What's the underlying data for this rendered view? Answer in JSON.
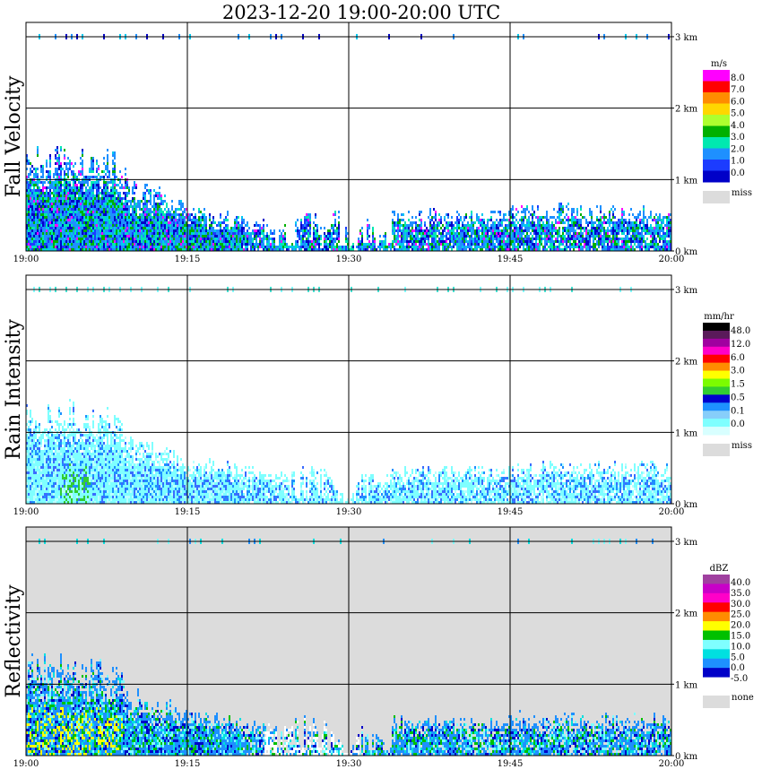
{
  "title": "2023-12-20   19:00-20:00 UTC",
  "chart_data": [
    {
      "type": "heatmap",
      "ylabel": "Fall Velocity",
      "x_ticks": [
        "19:00",
        "19:15",
        "19:30",
        "19:45",
        "20:00"
      ],
      "y_ticks": [
        "0 km",
        "1 km",
        "2 km",
        "3 km"
      ],
      "ylim_km": [
        0,
        3.2
      ],
      "xlim_min": [
        0,
        60
      ],
      "background": "#ffffff",
      "legend_unit": "m/s",
      "legend_colors": [
        "#ff00ff",
        "#ff0000",
        "#ff8c00",
        "#ffd700",
        "#adff2f",
        "#00b000",
        "#00e8b0",
        "#1e90ff",
        "#1c3cff",
        "#0000c8"
      ],
      "legend_labels": [
        "8.0",
        "7.0",
        "6.0",
        "5.0",
        "4.0",
        "3.0",
        "2.0",
        "1.0",
        "0.0"
      ],
      "legend_miss": "miss",
      "profile": [
        [
          0,
          1.4
        ],
        [
          2,
          1.35
        ],
        [
          4,
          1.4
        ],
        [
          6,
          1.35
        ],
        [
          8.5,
          1.35
        ],
        [
          9.5,
          0.95
        ],
        [
          12,
          0.85
        ],
        [
          14,
          0.75
        ],
        [
          15,
          0.62
        ],
        [
          18,
          0.55
        ],
        [
          20,
          0.5
        ],
        [
          22,
          0.45
        ],
        [
          23,
          0.3
        ],
        [
          25,
          0.45
        ],
        [
          26.5,
          0.6
        ],
        [
          27.5,
          0.3
        ],
        [
          29,
          0.6
        ],
        [
          30.5,
          0.05
        ],
        [
          31.5,
          0.55
        ],
        [
          33,
          0.2
        ],
        [
          34,
          0.6
        ],
        [
          36,
          0.5
        ],
        [
          38,
          0.6
        ],
        [
          40,
          0.55
        ],
        [
          42,
          0.6
        ],
        [
          44,
          0.55
        ],
        [
          46,
          0.65
        ],
        [
          48,
          0.6
        ],
        [
          50,
          0.65
        ],
        [
          52,
          0.6
        ],
        [
          54,
          0.65
        ],
        [
          56,
          0.6
        ],
        [
          58,
          0.65
        ],
        [
          60,
          0.55
        ]
      ],
      "echo_colors": [
        "#1e90ff",
        "#1e90ff",
        "#00c8f0",
        "#00e8b0",
        "#1c3cff",
        "#0000c8",
        "#00b000"
      ],
      "top_colors": [
        "#1e90ff",
        "#00c8f0",
        "#0000c8"
      ]
    },
    {
      "type": "heatmap",
      "ylabel": "Rain Intensity",
      "x_ticks": [
        "19:00",
        "19:15",
        "19:30",
        "19:45",
        "20:00"
      ],
      "y_ticks": [
        "0 km",
        "1 km",
        "2 km",
        "3 km"
      ],
      "ylim_km": [
        0,
        3.2
      ],
      "xlim_min": [
        0,
        60
      ],
      "background": "#ffffff",
      "legend_unit": "mm/hr",
      "legend_colors": [
        "#000000",
        "#5a1a5a",
        "#a000a0",
        "#ff00c8",
        "#ff0000",
        "#ff8c00",
        "#ffff00",
        "#7cfc00",
        "#32cd32",
        "#0000cd",
        "#1e90ff",
        "#87cefa",
        "#7fffff",
        "#d8ffff"
      ],
      "legend_labels": [
        "48.0",
        "12.0",
        "6.0",
        "3.0",
        "1.5",
        "0.5",
        "0.1",
        "0.0"
      ],
      "legend_miss": "miss",
      "profile": [
        [
          0,
          1.35
        ],
        [
          2,
          1.3
        ],
        [
          4,
          1.35
        ],
        [
          6,
          1.3
        ],
        [
          8.5,
          1.3
        ],
        [
          9.5,
          0.9
        ],
        [
          12,
          0.8
        ],
        [
          14,
          0.7
        ],
        [
          15,
          0.6
        ],
        [
          18,
          0.6
        ],
        [
          20,
          0.55
        ],
        [
          22,
          0.5
        ],
        [
          24,
          0.45
        ],
        [
          26,
          0.55
        ],
        [
          28,
          0.45
        ],
        [
          30,
          0.05
        ],
        [
          31,
          0.5
        ],
        [
          33,
          0.3
        ],
        [
          34,
          0.55
        ],
        [
          36,
          0.5
        ],
        [
          38,
          0.55
        ],
        [
          40,
          0.5
        ],
        [
          42,
          0.55
        ],
        [
          44,
          0.5
        ],
        [
          46,
          0.6
        ],
        [
          48,
          0.55
        ],
        [
          50,
          0.6
        ],
        [
          52,
          0.55
        ],
        [
          54,
          0.6
        ],
        [
          56,
          0.55
        ],
        [
          58,
          0.6
        ],
        [
          60,
          0.5
        ]
      ],
      "echo_colors": [
        "#7fffff",
        "#7fffff",
        "#7fffff",
        "#b8ffff",
        "#7fffff",
        "#1e90ff",
        "#3a6cff"
      ],
      "top_colors": [
        "#7fffff",
        "#40e0d0"
      ]
    },
    {
      "type": "heatmap",
      "ylabel": "Reflectivity",
      "x_ticks": [
        "19:00",
        "19:15",
        "19:30",
        "19:45",
        "20:00"
      ],
      "y_ticks": [
        "0 km",
        "1 km",
        "2 km",
        "3 km"
      ],
      "ylim_km": [
        0,
        3.2
      ],
      "xlim_min": [
        0,
        60
      ],
      "background": "#dcdcdc",
      "legend_unit": "dBZ",
      "legend_colors": [
        "#a040a0",
        "#c800c8",
        "#ff00c8",
        "#ff0000",
        "#ff8c00",
        "#ffff00",
        "#00c000",
        "#7fffff",
        "#00e0e0",
        "#1e90ff",
        "#0000c8",
        "#ffffff"
      ],
      "legend_labels": [
        "40.0",
        "35.0",
        "30.0",
        "25.0",
        "20.0",
        "15.0",
        "10.0",
        "5.0",
        "0.0",
        "-5.0"
      ],
      "legend_miss": "none",
      "profile": [
        [
          0,
          1.35
        ],
        [
          2,
          1.3
        ],
        [
          4,
          1.35
        ],
        [
          6,
          1.3
        ],
        [
          8.5,
          1.3
        ],
        [
          9.5,
          0.9
        ],
        [
          12,
          0.8
        ],
        [
          14,
          0.7
        ],
        [
          15,
          0.6
        ],
        [
          18,
          0.55
        ],
        [
          20,
          0.5
        ],
        [
          22,
          0.45
        ],
        [
          24,
          0.45
        ],
        [
          26,
          0.55
        ],
        [
          28,
          0.45
        ],
        [
          30,
          0.05
        ],
        [
          31,
          0.5
        ],
        [
          33,
          0.3
        ],
        [
          34,
          0.55
        ],
        [
          36,
          0.5
        ],
        [
          38,
          0.55
        ],
        [
          40,
          0.55
        ],
        [
          42,
          0.55
        ],
        [
          44,
          0.5
        ],
        [
          46,
          0.6
        ],
        [
          48,
          0.55
        ],
        [
          50,
          0.6
        ],
        [
          52,
          0.55
        ],
        [
          54,
          0.6
        ],
        [
          56,
          0.55
        ],
        [
          58,
          0.6
        ],
        [
          60,
          0.5
        ]
      ],
      "echo_colors": [
        "#1e90ff",
        "#00e0e0",
        "#1e90ff",
        "#0000c8",
        "#00c000",
        "#7fffff",
        "#1e90ff"
      ],
      "top_colors": [
        "#00e0e0",
        "#7fffff",
        "#1e90ff"
      ]
    }
  ]
}
